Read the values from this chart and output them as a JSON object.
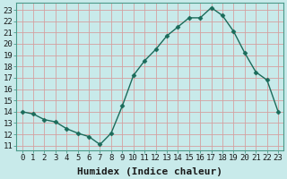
{
  "x": [
    0,
    1,
    2,
    3,
    4,
    5,
    6,
    7,
    8,
    9,
    10,
    11,
    12,
    13,
    14,
    15,
    16,
    17,
    18,
    19,
    20,
    21,
    22,
    23
  ],
  "y": [
    14.0,
    13.8,
    13.3,
    13.1,
    12.5,
    12.1,
    11.8,
    11.1,
    12.1,
    14.5,
    17.2,
    18.5,
    19.5,
    20.7,
    21.5,
    22.3,
    22.3,
    23.2,
    22.5,
    21.1,
    19.2,
    17.5,
    16.8,
    14.0
  ],
  "line_color": "#1a6b5a",
  "marker": "D",
  "markersize": 2.5,
  "linewidth": 1.0,
  "bg_color": "#c8eaea",
  "grid_color": "#d4a0a0",
  "xlabel": "Humidex (Indice chaleur)",
  "xlabel_fontsize": 8,
  "ylabel_ticks": [
    11,
    12,
    13,
    14,
    15,
    16,
    17,
    18,
    19,
    20,
    21,
    22,
    23
  ],
  "xlim": [
    -0.5,
    23.5
  ],
  "ylim": [
    10.6,
    23.6
  ],
  "xtick_labels": [
    "0",
    "1",
    "2",
    "3",
    "4",
    "5",
    "6",
    "7",
    "8",
    "9",
    "10",
    "11",
    "12",
    "13",
    "14",
    "15",
    "16",
    "17",
    "18",
    "19",
    "20",
    "21",
    "22",
    "23"
  ],
  "tick_fontsize": 6.5,
  "spine_color": "#4a9a8a"
}
